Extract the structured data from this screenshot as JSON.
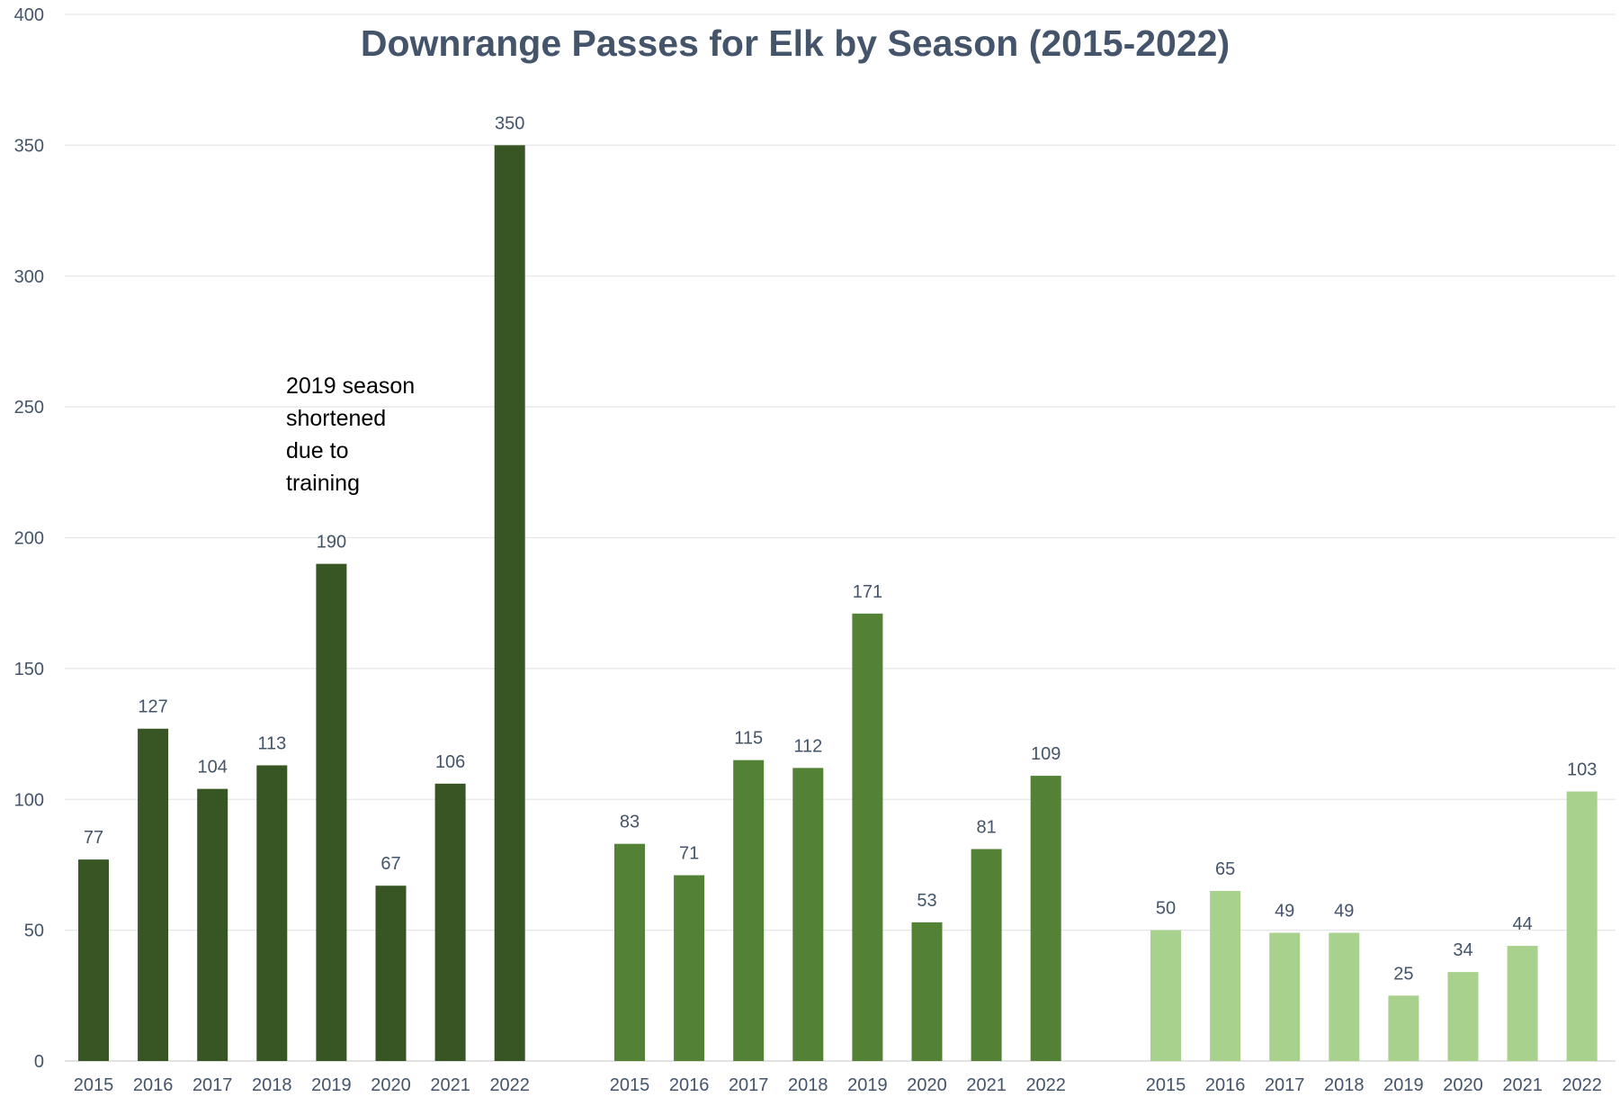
{
  "chart_data": {
    "type": "bar",
    "title": "Downrange Passes for Elk by Season (2015-2022)",
    "xlabel": "",
    "ylabel": "",
    "ylim": [
      0,
      400
    ],
    "y_ticks": [
      0,
      50,
      100,
      150,
      200,
      250,
      300,
      350,
      400
    ],
    "grid": true,
    "legend": "none",
    "categories": [
      "2015",
      "2016",
      "2017",
      "2018",
      "2019",
      "2020",
      "2021",
      "2022"
    ],
    "series": [
      {
        "color": "#375623",
        "values": [
          77,
          127,
          104,
          113,
          190,
          67,
          106,
          350
        ]
      },
      {
        "color": "#538135",
        "values": [
          83,
          71,
          115,
          112,
          171,
          53,
          81,
          109
        ]
      },
      {
        "color": "#a9d18e",
        "values": [
          50,
          65,
          49,
          49,
          25,
          34,
          44,
          103
        ]
      }
    ],
    "annotation": {
      "lines": [
        "2019 season",
        "shortened",
        "due to",
        "training"
      ]
    }
  }
}
